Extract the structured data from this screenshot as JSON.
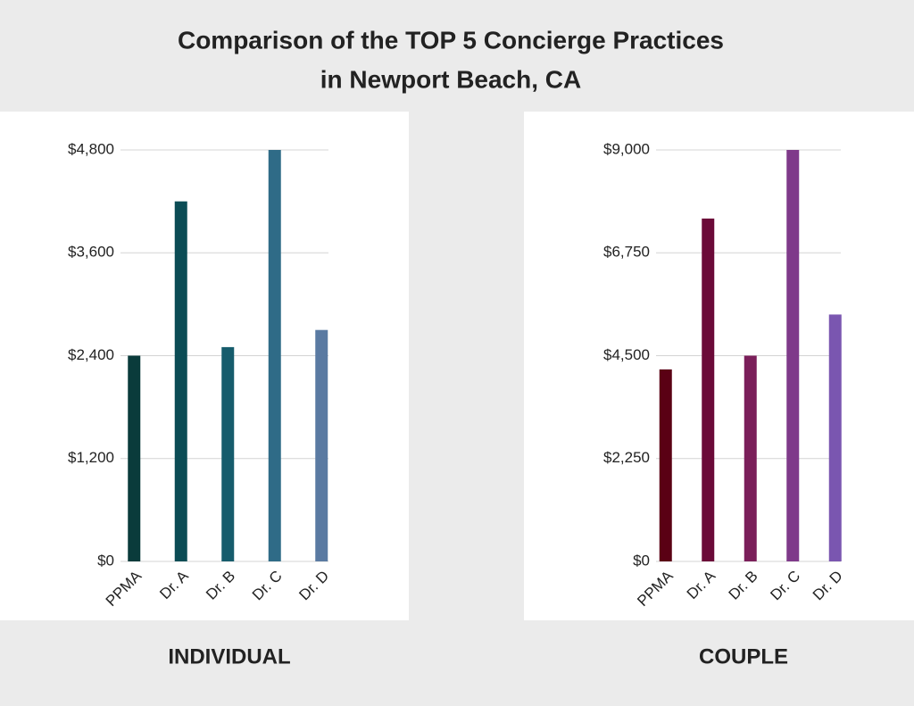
{
  "title": [
    "Comparison of the TOP 5 Concierge Practices",
    "in Newport Beach, CA"
  ],
  "chart_data": [
    {
      "type": "bar",
      "caption": "INDIVIDUAL",
      "categories": [
        "PPMA",
        "Dr. A",
        "Dr. B",
        "Dr. C",
        "Dr. D"
      ],
      "values": [
        2400,
        4200,
        2500,
        4800,
        2700
      ],
      "colors": [
        "#0a3b3b",
        "#0b4c55",
        "#165c6c",
        "#2f6b87",
        "#5a7aa2"
      ],
      "ylim": [
        0,
        4800
      ],
      "yticks": [
        {
          "value": 0,
          "label": "$0"
        },
        {
          "value": 1200,
          "label": "$1,200"
        },
        {
          "value": 2400,
          "label": "$2,400"
        },
        {
          "value": 3600,
          "label": "$3,600"
        },
        {
          "value": 4800,
          "label": "$4,800"
        }
      ],
      "grid": true
    },
    {
      "type": "bar",
      "caption": "COUPLE",
      "categories": [
        "PPMA",
        "Dr. A",
        "Dr. B",
        "Dr. C",
        "Dr. D"
      ],
      "values": [
        4200,
        7500,
        4500,
        9000,
        5400
      ],
      "colors": [
        "#5a0014",
        "#6b0a38",
        "#7b1f5a",
        "#7f3a8a",
        "#7a56b0"
      ],
      "ylim": [
        0,
        9000
      ],
      "yticks": [
        {
          "value": 0,
          "label": "$0"
        },
        {
          "value": 2250,
          "label": "$2,250"
        },
        {
          "value": 4500,
          "label": "$4,500"
        },
        {
          "value": 6750,
          "label": "$6,750"
        },
        {
          "value": 9000,
          "label": "$9,000"
        }
      ],
      "grid": true
    }
  ]
}
